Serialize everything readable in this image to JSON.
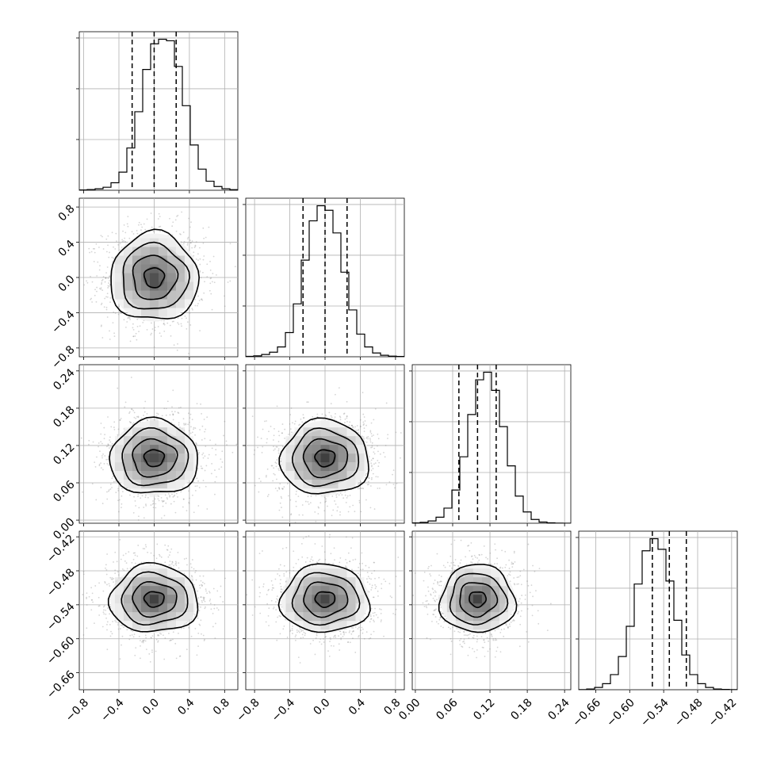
{
  "chart_data": {
    "type": "corner",
    "n_params": 4,
    "grid": true,
    "quantile_lines": [
      0.16,
      0.5,
      0.84
    ],
    "params": [
      {
        "mean": 0.0,
        "sd": 0.25,
        "range": [
          -0.85,
          0.95
        ],
        "ticks": [
          -0.8,
          -0.4,
          0.0,
          0.4,
          0.8
        ],
        "tick_labels": [
          "−0.8",
          "−0.4",
          "0.0",
          "0.4",
          "0.8"
        ],
        "quantiles": [
          -0.25,
          0.0,
          0.25
        ]
      },
      {
        "mean": 0.0,
        "sd": 0.25,
        "range": [
          -0.9,
          0.9
        ],
        "ticks": [
          -0.8,
          -0.4,
          0.0,
          0.4,
          0.8
        ],
        "tick_labels": [
          "−0.8",
          "−0.4",
          "0.0",
          "0.4",
          "0.8"
        ],
        "quantiles": [
          -0.25,
          0.0,
          0.25
        ]
      },
      {
        "mean": 0.1,
        "sd": 0.03,
        "range": [
          -0.005,
          0.25
        ],
        "ticks": [
          0.0,
          0.06,
          0.12,
          0.18,
          0.24
        ],
        "tick_labels": [
          "0.00",
          "0.06",
          "0.12",
          "0.18",
          "0.24"
        ],
        "quantiles": [
          0.07,
          0.1,
          0.13
        ]
      },
      {
        "mean": -0.53,
        "sd": 0.03,
        "range": [
          -0.69,
          -0.41
        ],
        "ticks": [
          -0.66,
          -0.6,
          -0.54,
          -0.48,
          -0.42
        ],
        "tick_labels": [
          "−0.66",
          "−0.60",
          "−0.54",
          "−0.48",
          "−0.42"
        ],
        "quantiles": [
          -0.56,
          -0.53,
          -0.5
        ]
      }
    ],
    "histograms": [
      {
        "edges_range": [
          -0.85,
          0.95
        ],
        "counts": [
          2,
          5,
          10,
          20,
          50,
          120,
          280,
          520,
          800,
          970,
          1000,
          990,
          820,
          560,
          300,
          140,
          60,
          25,
          10,
          4
        ]
      },
      {
        "edges_range": [
          -0.9,
          0.9
        ],
        "counts": [
          3,
          6,
          15,
          30,
          65,
          160,
          350,
          640,
          900,
          1000,
          970,
          820,
          560,
          310,
          150,
          65,
          25,
          10,
          4,
          2
        ]
      },
      {
        "edges_range": [
          -0.005,
          0.25
        ],
        "counts": [
          2,
          6,
          15,
          40,
          100,
          220,
          440,
          720,
          950,
          1000,
          880,
          640,
          380,
          180,
          75,
          25,
          8,
          3,
          1,
          0
        ]
      },
      {
        "edges_range": [
          -0.69,
          -0.41
        ],
        "counts": [
          1,
          5,
          15,
          40,
          100,
          220,
          420,
          700,
          920,
          1000,
          930,
          720,
          460,
          230,
          100,
          40,
          15,
          5,
          2,
          1
        ]
      }
    ]
  }
}
